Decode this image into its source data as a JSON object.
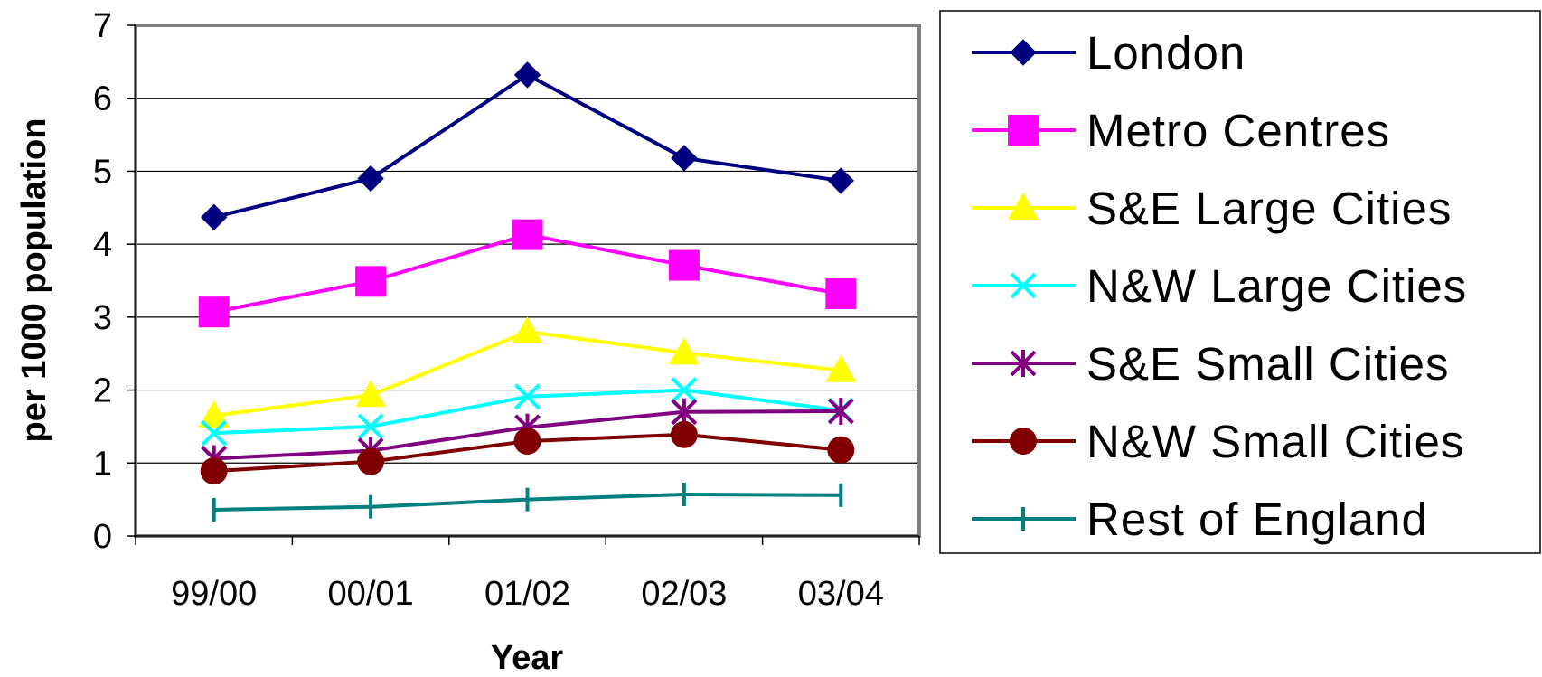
{
  "chart_data": {
    "type": "line",
    "xlabel": "Year",
    "ylabel": "per 1000 population",
    "ylim": [
      0,
      7
    ],
    "yticks": [
      "0",
      "1",
      "2",
      "3",
      "4",
      "5",
      "6",
      "7"
    ],
    "categories": [
      "99/00",
      "00/01",
      "01/02",
      "02/03",
      "03/04"
    ],
    "grid": "horizontal",
    "legend_position": "right",
    "series": [
      {
        "name": "London",
        "marker": "diamond",
        "color": "#000080",
        "values": [
          4.37,
          4.9,
          6.32,
          5.18,
          4.87
        ]
      },
      {
        "name": "Metro Centres",
        "marker": "square",
        "color": "#FF00FF",
        "values": [
          3.07,
          3.49,
          4.13,
          3.71,
          3.32
        ]
      },
      {
        "name": "S&E Large Cities",
        "marker": "triangle",
        "color": "#FFFF00",
        "values": [
          1.65,
          1.93,
          2.8,
          2.51,
          2.27
        ]
      },
      {
        "name": "N&W Large Cities",
        "marker": "x",
        "color": "#00FFFF",
        "values": [
          1.41,
          1.5,
          1.91,
          2.0,
          1.72
        ]
      },
      {
        "name": "S&E Small Cities",
        "marker": "star",
        "color": "#800080",
        "values": [
          1.06,
          1.17,
          1.49,
          1.7,
          1.71
        ]
      },
      {
        "name": "N&W Small Cities",
        "marker": "circle",
        "color": "#800000",
        "values": [
          0.89,
          1.02,
          1.3,
          1.39,
          1.18
        ]
      },
      {
        "name": "Rest of England",
        "marker": "plus",
        "color": "#008080",
        "values": [
          0.36,
          0.4,
          0.5,
          0.57,
          0.56
        ]
      }
    ]
  }
}
